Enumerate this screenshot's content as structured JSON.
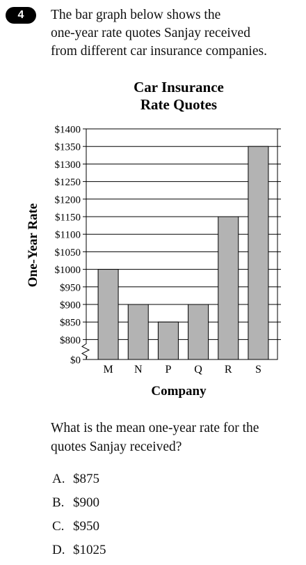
{
  "question": {
    "number": "4",
    "stem_lines": [
      "The bar graph below shows the",
      "one-year rate quotes Sanjay received",
      "from different car insurance companies."
    ],
    "prompt_lines": [
      "What is the mean one-year rate for the",
      "quotes Sanjay received?"
    ],
    "choices": [
      {
        "letter": "A.",
        "text": "$875"
      },
      {
        "letter": "B.",
        "text": "$900"
      },
      {
        "letter": "C.",
        "text": "$950"
      },
      {
        "letter": "D.",
        "text": "$1025"
      }
    ]
  },
  "chart_data": {
    "type": "bar",
    "title": [
      "Car Insurance",
      "Rate Quotes"
    ],
    "xlabel": "Company",
    "ylabel": "One-Year Rate",
    "categories": [
      "M",
      "N",
      "P",
      "Q",
      "R",
      "S"
    ],
    "values": [
      1000,
      900,
      850,
      900,
      1150,
      1350
    ],
    "ylim": [
      750,
      1400
    ],
    "yticks": [
      1400,
      1350,
      1300,
      1250,
      1200,
      1150,
      1100,
      1050,
      1000,
      950,
      900,
      850,
      800
    ],
    "ytick_labels": [
      "$1400",
      "$1350",
      "$1300",
      "$1250",
      "$1200",
      "$1150",
      "$1100",
      "$1050",
      "$1000",
      "$950",
      "$900",
      "$850",
      "$800"
    ],
    "zero_label": "$0",
    "axis_break": true,
    "grid": true,
    "bar_color": "#b3b3b3"
  }
}
